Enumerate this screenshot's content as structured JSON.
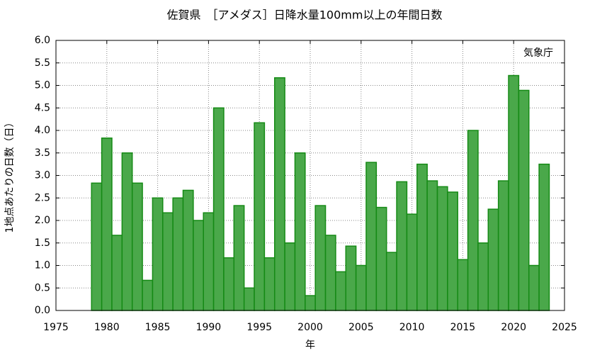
{
  "chart_data": {
    "type": "bar",
    "title": "佐賀県　［アメダス］日降水量100mm以上の年間日数",
    "xlabel": "年",
    "ylabel": "1地点あたりの日数（日）",
    "annotation": "気象庁",
    "x": [
      1979,
      1980,
      1981,
      1982,
      1983,
      1984,
      1985,
      1986,
      1987,
      1988,
      1989,
      1990,
      1991,
      1992,
      1993,
      1994,
      1995,
      1996,
      1997,
      1998,
      1999,
      2000,
      2001,
      2002,
      2003,
      2004,
      2005,
      2006,
      2007,
      2008,
      2009,
      2010,
      2011,
      2012,
      2013,
      2014,
      2015,
      2016,
      2017,
      2018,
      2019,
      2020,
      2021,
      2022,
      2023
    ],
    "values": [
      2.83,
      3.83,
      1.67,
      3.5,
      2.83,
      0.67,
      2.5,
      2.17,
      2.5,
      2.67,
      2.0,
      2.17,
      4.5,
      1.17,
      2.33,
      0.5,
      4.17,
      1.17,
      5.17,
      1.5,
      3.5,
      0.33,
      2.33,
      1.67,
      0.86,
      1.43,
      1.0,
      3.29,
      2.29,
      1.29,
      2.86,
      2.14,
      3.25,
      2.88,
      2.75,
      2.63,
      1.13,
      4.0,
      1.5,
      2.25,
      2.88,
      5.22,
      4.89,
      1.0,
      3.25
    ],
    "color": "#4aa84a",
    "edgecolor": "#158a15",
    "xlim": [
      1975,
      2025
    ],
    "xticks": [
      1975,
      1980,
      1985,
      1990,
      1995,
      2000,
      2005,
      2010,
      2015,
      2020,
      2025
    ],
    "ylim": [
      0,
      6
    ],
    "yticks": [
      {
        "value": 0,
        "label": "0.0"
      },
      {
        "value": 0.5,
        "label": "0.5"
      },
      {
        "value": 1,
        "label": "1.0"
      },
      {
        "value": 1.5,
        "label": "1.5"
      },
      {
        "value": 2,
        "label": "2.0"
      },
      {
        "value": 2.5,
        "label": "2.5"
      },
      {
        "value": 3,
        "label": "3.0"
      },
      {
        "value": 3.5,
        "label": "3.5"
      },
      {
        "value": 4,
        "label": "4.0"
      },
      {
        "value": 4.5,
        "label": "4.5"
      },
      {
        "value": 5,
        "label": "5.0"
      },
      {
        "value": 5.5,
        "label": "5.5"
      },
      {
        "value": 6,
        "label": "6.0"
      }
    ],
    "grid": true
  }
}
